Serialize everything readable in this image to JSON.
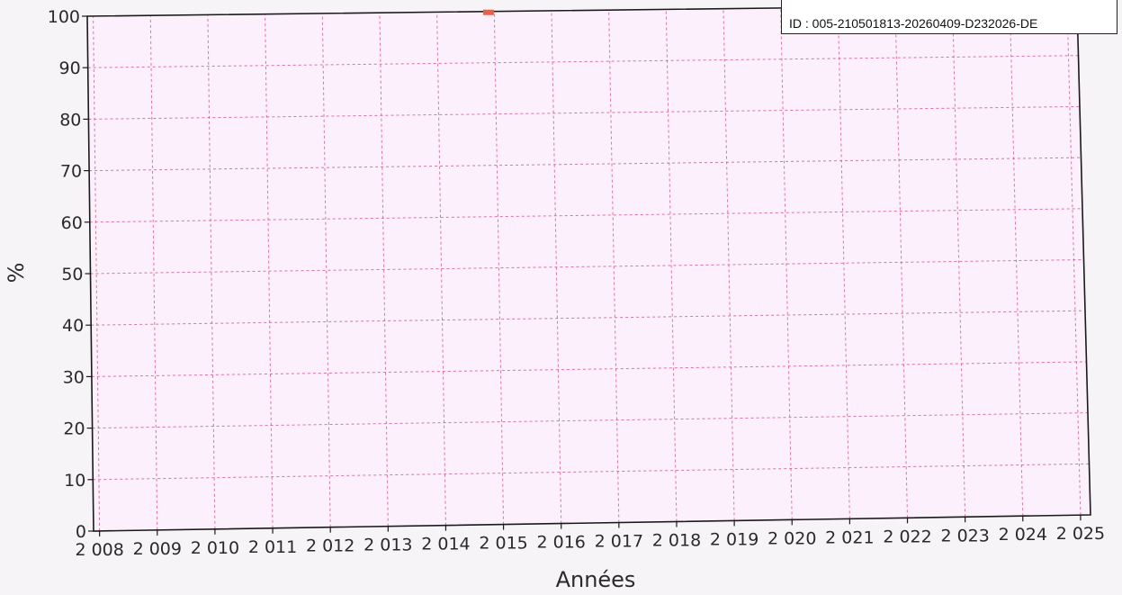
{
  "chart_data": {
    "type": "line",
    "ylabel": "%",
    "xlabel": "Années",
    "ylim": [
      0,
      100
    ],
    "yticks": [
      0,
      10,
      20,
      30,
      40,
      50,
      60,
      70,
      80,
      90,
      100
    ],
    "x_tick_labels": [
      "2 008",
      "2 009",
      "2 010",
      "2 011",
      "2 012",
      "2 013",
      "2 014",
      "2 015",
      "2 016",
      "2 017",
      "2 018",
      "2 019",
      "2 020",
      "2 021",
      "2 022",
      "2 023",
      "2 024",
      "2 025"
    ],
    "x_tick_labels_as_printed": "2 0082 0092 0102 0112 0122 0132 0142 0152 0162 0172 0182 0192 0202 0212 0222 0232 0242 025",
    "grid": true,
    "series": [
      {
        "color": "#e8604a",
        "x": [
          2014.9
        ],
        "values": [
          100
        ]
      }
    ],
    "plot_background": "#fbf0fb",
    "grid_color": "#d04a8a"
  },
  "stamp": {
    "id_text": "ID : 005-210501813-20260409-D232026-DE"
  }
}
